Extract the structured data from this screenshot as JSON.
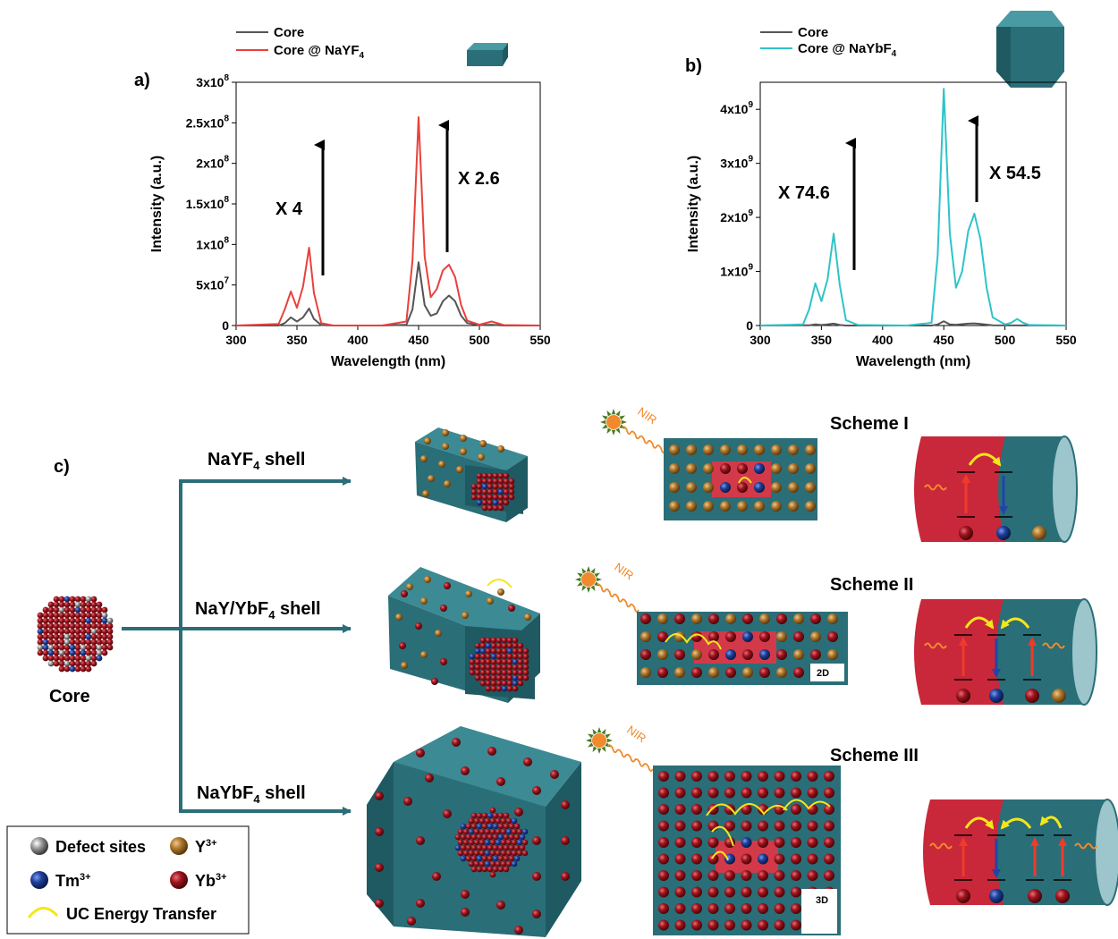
{
  "panel_a": {
    "label": "a)",
    "legend": [
      "Core",
      "Core @ NaYF",
      "4"
    ],
    "annot_left": "X 4",
    "annot_right": "X 2.6"
  },
  "panel_b": {
    "label": "b)",
    "legend": [
      "Core",
      "Core @ NaYbF",
      "4"
    ],
    "annot_left": "X 74.6",
    "annot_right": "X 54.5"
  },
  "chart_data": [
    {
      "type": "line",
      "xlabel": "Wavelength (nm)",
      "ylabel": "Intensity (a.u.)",
      "xlim": [
        300,
        550
      ],
      "ylim": [
        0,
        300000000.0
      ],
      "x_ticks": [
        "300",
        "350",
        "400",
        "450",
        "500",
        "550"
      ],
      "y_ticks": [
        {
          "mant": "0",
          "exp": ""
        },
        {
          "mant": "5x10",
          "exp": "7"
        },
        {
          "mant": "1x10",
          "exp": "8"
        },
        {
          "mant": "1.5x10",
          "exp": "8"
        },
        {
          "mant": "2x10",
          "exp": "8"
        },
        {
          "mant": "2.5x10",
          "exp": "8"
        },
        {
          "mant": "3x10",
          "exp": "8"
        }
      ],
      "series": [
        {
          "name": "Core",
          "color": "#555555",
          "x": [
            300,
            335,
            340,
            345,
            350,
            355,
            360,
            364,
            370,
            380,
            420,
            440,
            445,
            450,
            455,
            460,
            465,
            470,
            475,
            480,
            485,
            490,
            500,
            510,
            520,
            550
          ],
          "y": [
            0,
            0.0,
            3000000.0,
            10000000.0,
            5000000.0,
            10000000.0,
            21000000.0,
            8000000.0,
            500000.0,
            0,
            0,
            1000000.0,
            20000000.0,
            78000000.0,
            25000000.0,
            12000000.0,
            15000000.0,
            30000000.0,
            37000000.0,
            30000000.0,
            12000000.0,
            3000000.0,
            500000.0,
            1000000.0,
            0,
            0
          ]
        },
        {
          "name": "Core @ NaYF4",
          "color": "#e8413c",
          "x": [
            300,
            335,
            340,
            345,
            350,
            355,
            360,
            364,
            370,
            380,
            420,
            440,
            445,
            450,
            455,
            460,
            465,
            470,
            475,
            480,
            485,
            490,
            500,
            510,
            520,
            550
          ],
          "y": [
            0,
            2000000.0,
            20000000.0,
            42000000.0,
            22000000.0,
            48000000.0,
            96000000.0,
            40000000.0,
            3000000.0,
            0,
            0,
            5000000.0,
            80000000.0,
            257000000.0,
            85000000.0,
            35000000.0,
            45000000.0,
            68000000.0,
            75000000.0,
            60000000.0,
            25000000.0,
            6000000.0,
            1000000.0,
            5000000.0,
            500000.0,
            0
          ]
        }
      ]
    },
    {
      "type": "line",
      "xlabel": "Wavelength (nm)",
      "ylabel": "Intensity (a.u.)",
      "xlim": [
        300,
        550
      ],
      "ylim": [
        0,
        4500000000.0
      ],
      "x_ticks": [
        "300",
        "350",
        "400",
        "450",
        "500",
        "550"
      ],
      "y_ticks": [
        {
          "mant": "0",
          "exp": ""
        },
        {
          "mant": "1x10",
          "exp": "9"
        },
        {
          "mant": "2x10",
          "exp": "9"
        },
        {
          "mant": "3x10",
          "exp": "9"
        },
        {
          "mant": "4x10",
          "exp": "9"
        }
      ],
      "series": [
        {
          "name": "Core",
          "color": "#555555",
          "x": [
            300,
            340,
            345,
            350,
            355,
            360,
            365,
            370,
            440,
            445,
            450,
            455,
            460,
            470,
            475,
            480,
            490,
            550
          ],
          "y": [
            0,
            5000000.0,
            20000000.0,
            10000000.0,
            20000000.0,
            35000000.0,
            10000000.0,
            0,
            0,
            20000000.0,
            80000000.0,
            20000000.0,
            15000000.0,
            35000000.0,
            40000000.0,
            30000000.0,
            5000000.0,
            0
          ]
        },
        {
          "name": "Core @ NaYbF4",
          "color": "#2ec4c9",
          "x": [
            300,
            335,
            340,
            345,
            350,
            355,
            360,
            365,
            370,
            380,
            420,
            440,
            445,
            450,
            455,
            460,
            465,
            470,
            475,
            480,
            485,
            490,
            500,
            505,
            510,
            515,
            520,
            550
          ],
          "y": [
            0,
            20000000.0,
            300000000.0,
            780000000.0,
            450000000.0,
            850000000.0,
            1700000000.0,
            750000000.0,
            100000000.0,
            10000000.0,
            0,
            50000000.0,
            1300000000.0,
            4380000000.0,
            1700000000.0,
            700000000.0,
            1000000000.0,
            1750000000.0,
            2070000000.0,
            1600000000.0,
            700000000.0,
            150000000.0,
            20000000.0,
            50000000.0,
            120000000.0,
            50000000.0,
            10000000.0,
            0
          ]
        }
      ]
    }
  ],
  "panel_c": {
    "label": "c)",
    "core_label": "Core",
    "branches": [
      {
        "name": "NaYF",
        "sub": "4",
        "suffix": " shell"
      },
      {
        "name": "NaY/YbF",
        "sub": "4",
        "suffix": " shell"
      },
      {
        "name": "NaYbF",
        "sub": "4",
        "suffix": " shell"
      }
    ],
    "nir_label": "NIR",
    "schemes": [
      "Scheme I",
      "Scheme II",
      "Scheme III"
    ],
    "badge_2d": "2D",
    "badge_3d": "3D"
  },
  "legend_c": {
    "defect": "Defect sites",
    "y": "Y",
    "y_sup": "3+",
    "tm": "Tm",
    "tm_sup": "3+",
    "yb": "Yb",
    "yb_sup": "3+",
    "uc": "UC Energy Transfer"
  },
  "colors": {
    "teal": "#2a6e78",
    "teal_dark": "#1f5a63",
    "red": "#c8283a",
    "yb": "#8b1219",
    "tm": "#1f3f9a",
    "y": "#b07a2e",
    "yellow": "#f5e61b",
    "orange": "#f08a2c"
  }
}
